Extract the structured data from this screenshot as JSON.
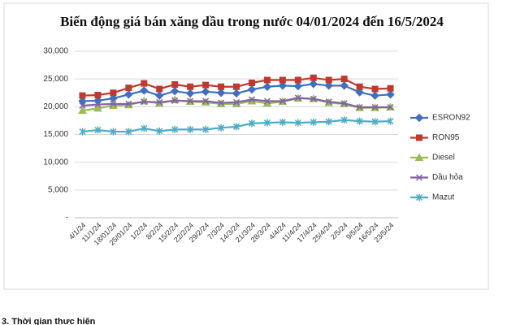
{
  "chart_data": {
    "type": "line",
    "title": "Biến động giá bán xăng dầu trong nước 04/01/2024 đến 16/5/2024",
    "categories": [
      "4/1/24",
      "11/1/24",
      "18/01/24",
      "25/01/24",
      "1/2/24",
      "8/2/24",
      "15/2/24",
      "22/2/24",
      "29/2/24",
      "7/3/24",
      "14/3/24",
      "21/3/24",
      "28/3/24",
      "4/4/24",
      "11/4/24",
      "17/4/24",
      "25/4/24",
      "2/5/24",
      "9/5/24",
      "16/5/24",
      "23/5/24"
    ],
    "series": [
      {
        "name": "ESRON92",
        "color": "#3f6fbf",
        "marker": "diamond",
        "values": [
          21000,
          21100,
          21500,
          22200,
          22900,
          22000,
          22800,
          22400,
          22700,
          22500,
          22400,
          23100,
          23600,
          23800,
          23700,
          24100,
          23800,
          23800,
          22600,
          22000,
          22200
        ]
      },
      {
        "name": "RON95",
        "color": "#c0392f",
        "marker": "square",
        "values": [
          22000,
          22100,
          22500,
          23400,
          24200,
          23200,
          24000,
          23600,
          23900,
          23600,
          23600,
          24300,
          24800,
          24800,
          24800,
          25200,
          24800,
          25000,
          23600,
          23200,
          23300
        ]
      },
      {
        "name": "Diesel",
        "color": "#9bbb59",
        "marker": "triangle",
        "values": [
          19300,
          19700,
          20200,
          20300,
          21000,
          20600,
          21200,
          20900,
          20800,
          20500,
          20500,
          21000,
          20600,
          20900,
          21500,
          21400,
          20700,
          20500,
          19800,
          19800,
          19900
        ]
      },
      {
        "name": "Dầu hỏa",
        "color": "#8064a2",
        "marker": "x",
        "values": [
          20200,
          20400,
          20500,
          20500,
          20900,
          20800,
          21100,
          21000,
          21000,
          20700,
          20800,
          21300,
          21000,
          21000,
          21600,
          21400,
          20900,
          20600,
          19900,
          19900,
          19900
        ]
      },
      {
        "name": "Mazut",
        "color": "#4bacc6",
        "marker": "star",
        "values": [
          15500,
          15800,
          15500,
          15500,
          16100,
          15600,
          15900,
          15900,
          15900,
          16200,
          16400,
          17000,
          17100,
          17200,
          17100,
          17200,
          17300,
          17600,
          17400,
          17300,
          17400
        ]
      }
    ],
    "ylim": [
      0,
      30000
    ],
    "yticks": [
      {
        "value": 0,
        "label": "-"
      },
      {
        "value": 5000,
        "label": "5,000"
      },
      {
        "value": 10000,
        "label": "10,000"
      },
      {
        "value": 15000,
        "label": "15,000"
      },
      {
        "value": 20000,
        "label": "20,000"
      },
      {
        "value": 25000,
        "label": "25,000"
      },
      {
        "value": 30000,
        "label": "30,000"
      }
    ],
    "grid": true,
    "legend": "right"
  },
  "footer_text": "3. Thời gian thực hiện"
}
